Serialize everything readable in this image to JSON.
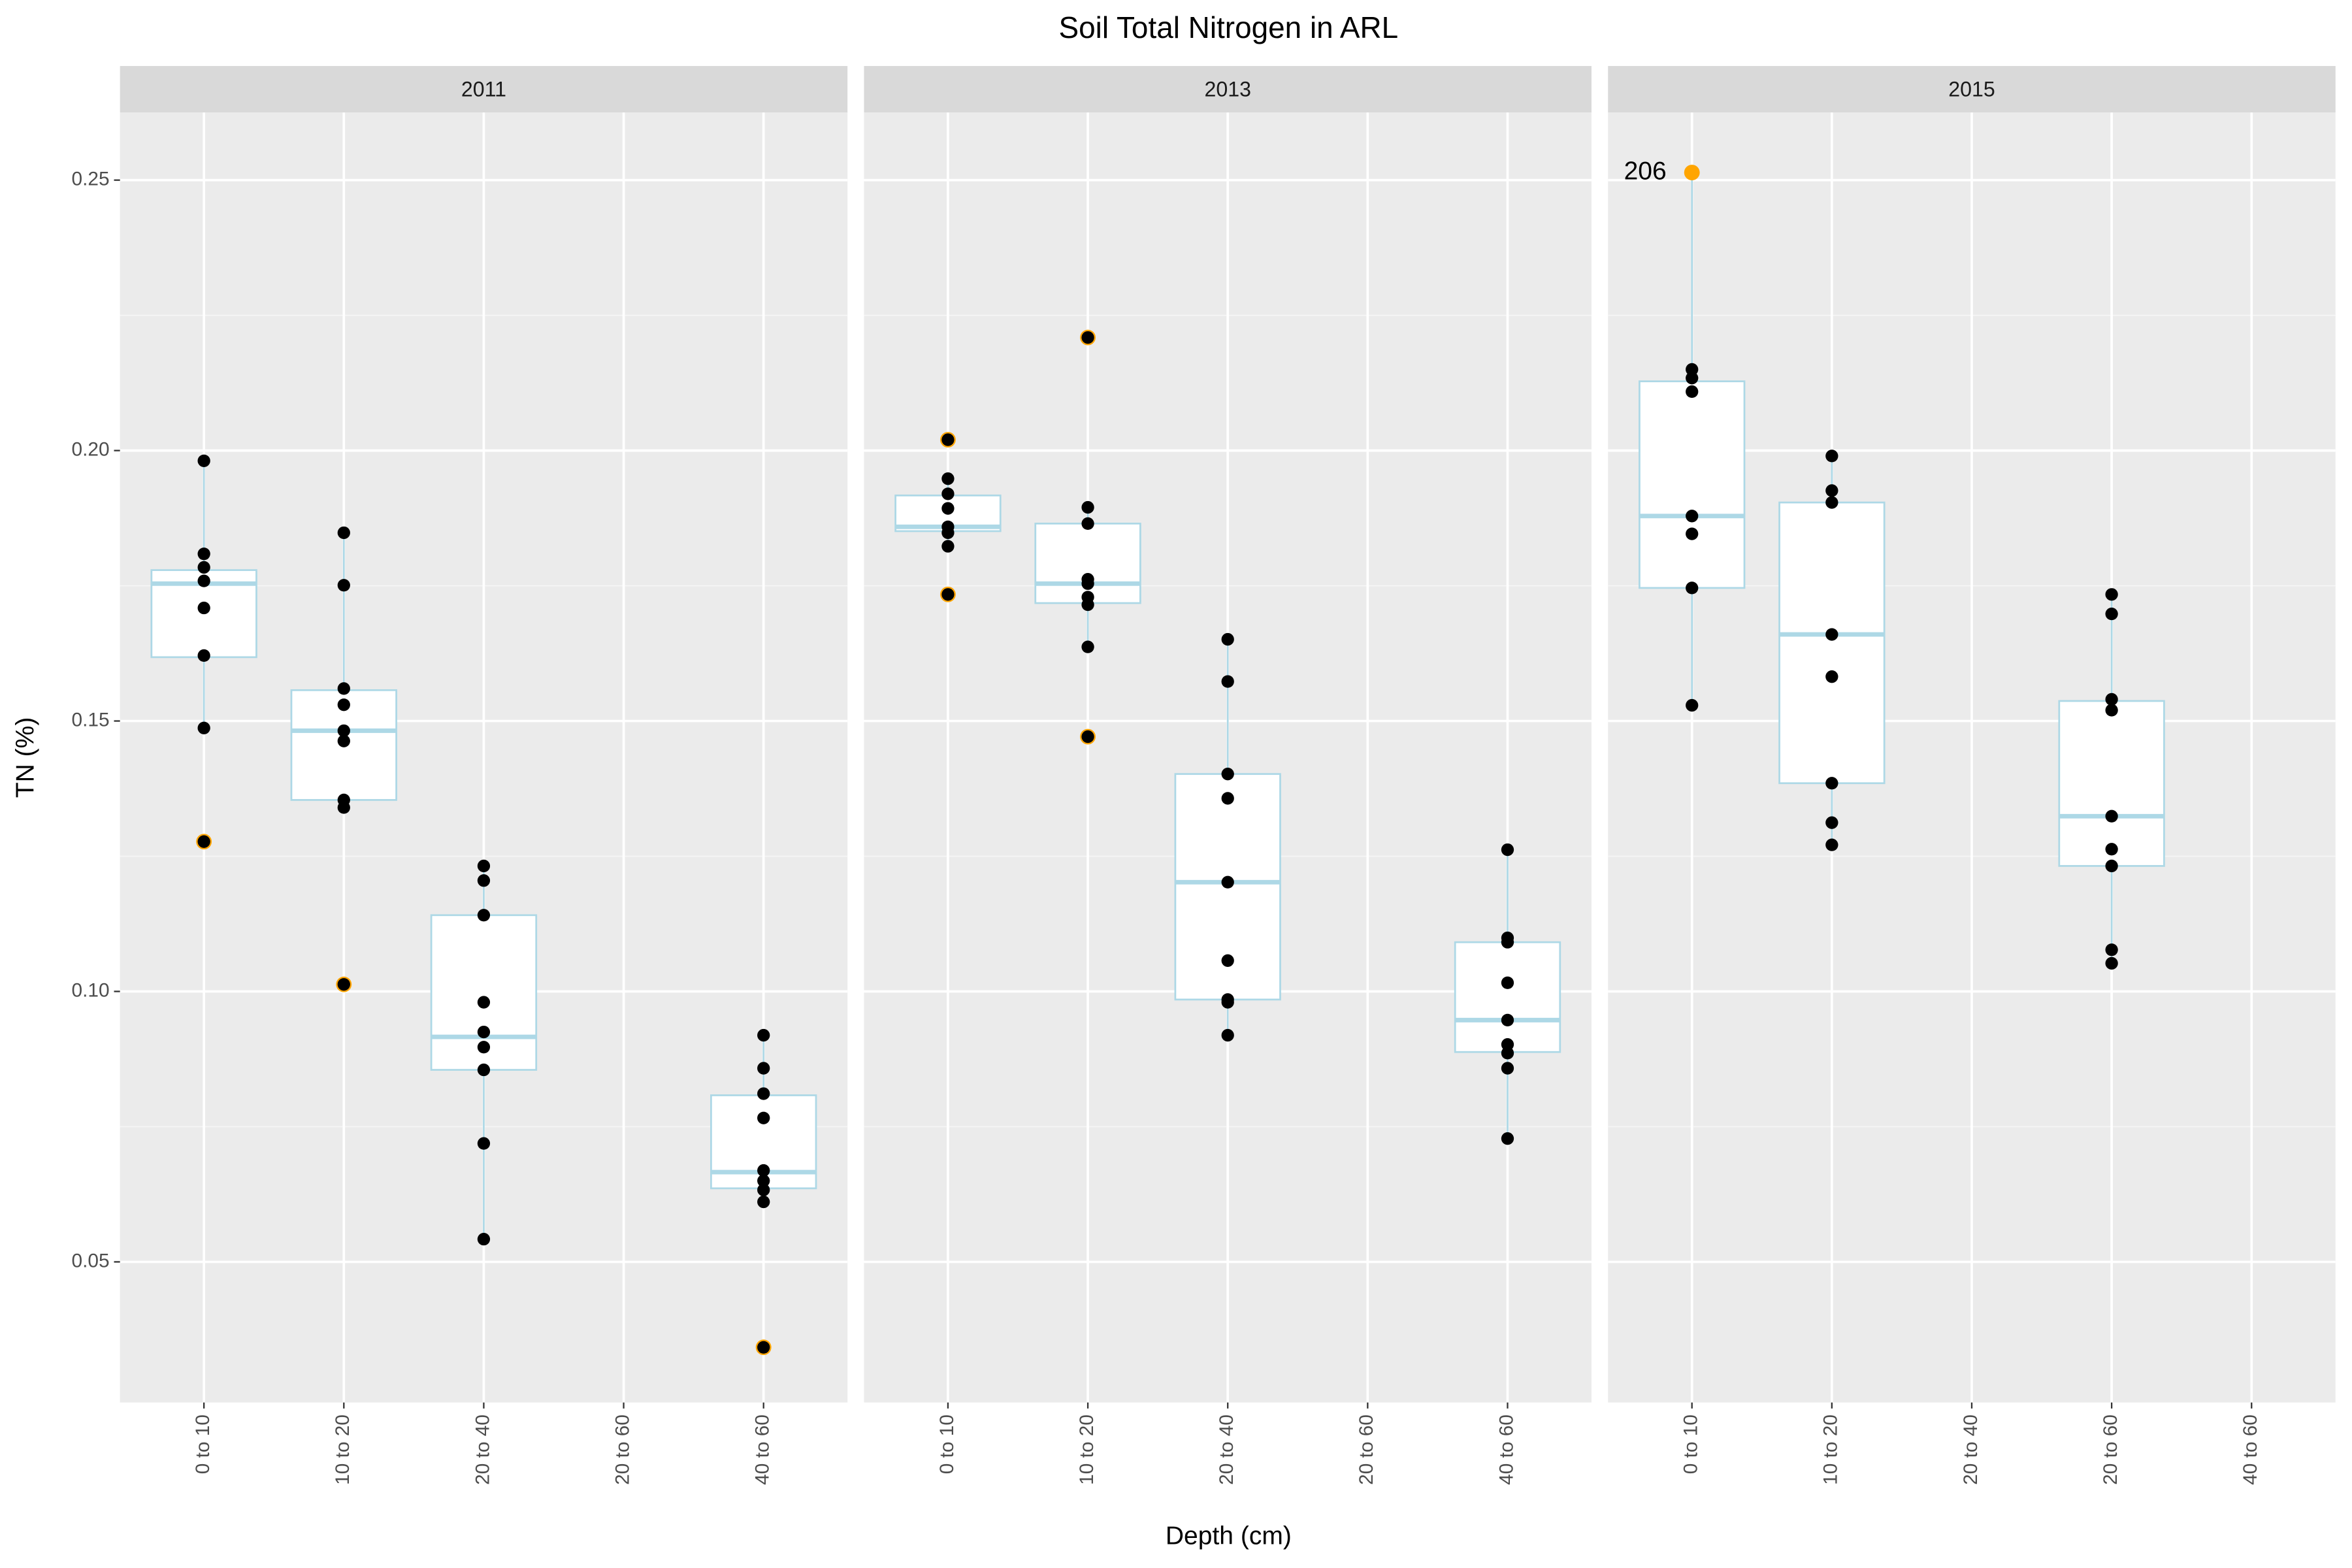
{
  "chart_data": {
    "type": "box",
    "title": "Soil Total Nitrogen in ARL",
    "x_label": "Depth (cm)",
    "y_label": "TN (%)",
    "ylim": [
      0.024,
      0.2625
    ],
    "yticks": [
      0.05,
      {
        "value": 0.1,
        "label": "0.10"
      },
      0.15,
      {
        "value": 0.2,
        "label": "0.20"
      },
      0.25
    ],
    "grid": true,
    "box_color": "#add8e6",
    "box_fill": "#ffffff",
    "point_color": "#000000",
    "outlier_color": "#ffa500",
    "panels": [
      {
        "title": "2011",
        "categories": [
          "0 to 10",
          "10 to 20",
          "20 to 40",
          "20 to 60",
          "40 to 60"
        ],
        "groups": [
          {
            "whisker_low": 0.1487,
            "q1": 0.1618,
            "median": 0.1754,
            "q3": 0.1779,
            "whisker_high": 0.1981,
            "outliers": [
              0.1277
            ],
            "points": [
              0.1981,
              0.1809,
              0.1784,
              0.1759,
              0.1709,
              0.1621,
              0.1487,
              0.1277
            ]
          },
          {
            "whisker_low": 0.134,
            "q1": 0.1354,
            "median": 0.1482,
            "q3": 0.1557,
            "whisker_high": 0.1848,
            "outliers": [
              0.1013
            ],
            "points": [
              0.1848,
              0.1751,
              0.156,
              0.153,
              0.1482,
              0.1463,
              0.1354,
              0.134,
              0.1013
            ]
          },
          {
            "whisker_low": 0.0542,
            "q1": 0.0855,
            "median": 0.0916,
            "q3": 0.1141,
            "whisker_high": 0.1232,
            "outliers": [],
            "points": [
              0.1232,
              0.1205,
              0.1141,
              0.098,
              0.0925,
              0.0897,
              0.0855,
              0.0719,
              0.0542
            ]
          },
          null,
          {
            "whisker_low": 0.0611,
            "q1": 0.0636,
            "median": 0.0666,
            "q3": 0.0808,
            "whisker_high": 0.0919,
            "outliers": [
              0.0342
            ],
            "points": [
              0.0919,
              0.0858,
              0.0811,
              0.0766,
              0.0669,
              0.065,
              0.0633,
              0.0611,
              0.0342
            ]
          }
        ]
      },
      {
        "title": "2013",
        "categories": [
          "0 to 10",
          "10 to 20",
          "20 to 40",
          "20 to 60",
          "40 to 60"
        ],
        "groups": [
          {
            "whisker_low": 0.1823,
            "q1": 0.1851,
            "median": 0.1859,
            "q3": 0.1917,
            "whisker_high": 0.1948,
            "outliers": [
              0.202,
              0.1734
            ],
            "points": [
              0.202,
              0.1948,
              0.192,
              0.1893,
              0.1859,
              0.1848,
              0.1823,
              0.1734
            ]
          },
          {
            "whisker_low": 0.1637,
            "q1": 0.1718,
            "median": 0.1754,
            "q3": 0.1865,
            "whisker_high": 0.1895,
            "outliers": [
              0.2209,
              0.1471
            ],
            "points": [
              0.2209,
              0.1895,
              0.1865,
              0.1762,
              0.1754,
              0.1729,
              0.1715,
              0.1637,
              0.1471
            ]
          },
          {
            "whisker_low": 0.0919,
            "q1": 0.0985,
            "median": 0.1202,
            "q3": 0.1402,
            "whisker_high": 0.1651,
            "outliers": [],
            "points": [
              0.1651,
              0.1573,
              0.1402,
              0.1357,
              0.1202,
              0.1057,
              0.0985,
              0.098,
              0.0919
            ]
          },
          null,
          {
            "whisker_low": 0.0728,
            "q1": 0.0888,
            "median": 0.0947,
            "q3": 0.1091,
            "whisker_high": 0.1262,
            "outliers": [],
            "points": [
              0.1262,
              0.1099,
              0.1091,
              0.1016,
              0.0947,
              0.0902,
              0.0886,
              0.0858,
              0.0728
            ]
          }
        ]
      },
      {
        "title": "2015",
        "categories": [
          "0 to 10",
          "10 to 20",
          "20 to 40",
          "20 to 60",
          "40 to 60"
        ],
        "groups": [
          {
            "whisker_low": 0.1529,
            "q1": 0.1746,
            "median": 0.1879,
            "q3": 0.2128,
            "whisker_high": 0.2514,
            "outliers": [
              0.2514
            ],
            "outlier_labels": [
              "206"
            ],
            "points": [
              0.215,
              0.2134,
              0.2109,
              0.1879,
              0.1846,
              0.1746,
              0.1529
            ]
          },
          {
            "whisker_low": 0.1271,
            "q1": 0.1385,
            "median": 0.166,
            "q3": 0.1904,
            "whisker_high": 0.199,
            "outliers": [],
            "points": [
              0.199,
              0.1926,
              0.1904,
              0.166,
              0.1582,
              0.1385,
              0.1312,
              0.1271
            ]
          },
          null,
          {
            "whisker_low": 0.1052,
            "q1": 0.1232,
            "median": 0.1324,
            "q3": 0.1537,
            "whisker_high": 0.1734,
            "outliers": [],
            "points": [
              0.1734,
              0.1698,
              0.154,
              0.152,
              0.1324,
              0.1263,
              0.1232,
              0.1077,
              0.1052
            ]
          },
          null
        ]
      }
    ]
  }
}
